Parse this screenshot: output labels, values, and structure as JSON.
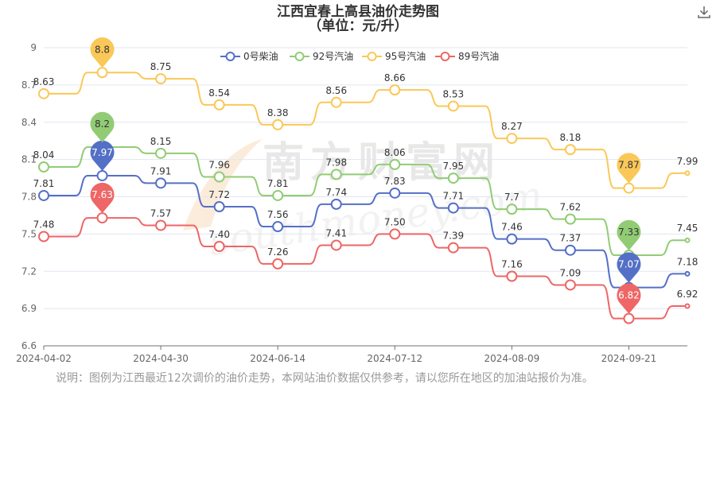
{
  "chart_data": {
    "type": "line",
    "title": "江西宜春上高县油价走势图",
    "subtitle": "（单位：元/升）",
    "ylim": [
      6.6,
      9.0
    ],
    "yticks": [
      "6.6",
      "6.9",
      "7.2",
      "7.5",
      "7.8",
      "8.1",
      "8.4",
      "8.7",
      "9"
    ],
    "xticks": [
      "2024-04-02",
      "2024-04-30",
      "2024-06-14",
      "2024-07-12",
      "2024-08-09",
      "2024-09-21"
    ],
    "legend_position": "top-center",
    "series": [
      {
        "name": "0号柴油",
        "color": "#5470c6",
        "values": [
          7.81,
          7.97,
          7.91,
          7.72,
          7.56,
          7.74,
          7.83,
          7.71,
          7.46,
          7.37,
          7.07,
          7.18
        ],
        "labels": [
          "7.81",
          "",
          "7.91",
          "7.72",
          "7.56",
          "7.74",
          "7.83",
          "7.71",
          "7.46",
          "7.37",
          "",
          "7.18"
        ],
        "pins": [
          {
            "index": 1,
            "label": "7.97"
          },
          {
            "index": 10,
            "label": "7.07"
          }
        ]
      },
      {
        "name": "92号汽油",
        "color": "#91cc75",
        "values": [
          8.04,
          8.2,
          8.15,
          7.96,
          7.81,
          7.98,
          8.06,
          7.95,
          7.7,
          7.62,
          7.33,
          7.45
        ],
        "labels": [
          "8.04",
          "",
          "8.15",
          "7.96",
          "7.81",
          "7.98",
          "8.06",
          "7.95",
          "7.7",
          "7.62",
          "",
          "7.45"
        ],
        "pins": [
          {
            "index": 1,
            "label": "8.2"
          },
          {
            "index": 10,
            "label": "7.33"
          }
        ]
      },
      {
        "name": "95号汽油",
        "color": "#fac858",
        "values": [
          8.63,
          8.8,
          8.75,
          8.54,
          8.38,
          8.56,
          8.66,
          8.53,
          8.27,
          8.18,
          7.87,
          7.99
        ],
        "labels": [
          "8.63",
          "",
          "8.75",
          "8.54",
          "8.38",
          "8.56",
          "8.66",
          "8.53",
          "8.27",
          "8.18",
          "",
          "7.99"
        ],
        "pins": [
          {
            "index": 1,
            "label": "8.8"
          },
          {
            "index": 10,
            "label": "7.87"
          }
        ]
      },
      {
        "name": "89号汽油",
        "color": "#ee6666",
        "values": [
          7.48,
          7.63,
          7.57,
          7.4,
          7.26,
          7.41,
          7.5,
          7.39,
          7.16,
          7.09,
          6.82,
          6.92
        ],
        "labels": [
          "7.48",
          "",
          "7.57",
          "7.40",
          "7.26",
          "7.41",
          "7.50",
          "7.39",
          "7.16",
          "7.09",
          "",
          "6.92"
        ],
        "pins": [
          {
            "index": 1,
            "label": "7.63"
          },
          {
            "index": 10,
            "label": "6.82"
          }
        ]
      }
    ]
  },
  "watermark": {
    "cn": "南方财富网",
    "en": "southmoney.com"
  },
  "note": "说明：图例为江西最近12次调价的油价走势，本网站油价数据仅供参考，请以您所在地区的加油站报价为准。",
  "icons": {
    "download": "download-icon"
  }
}
